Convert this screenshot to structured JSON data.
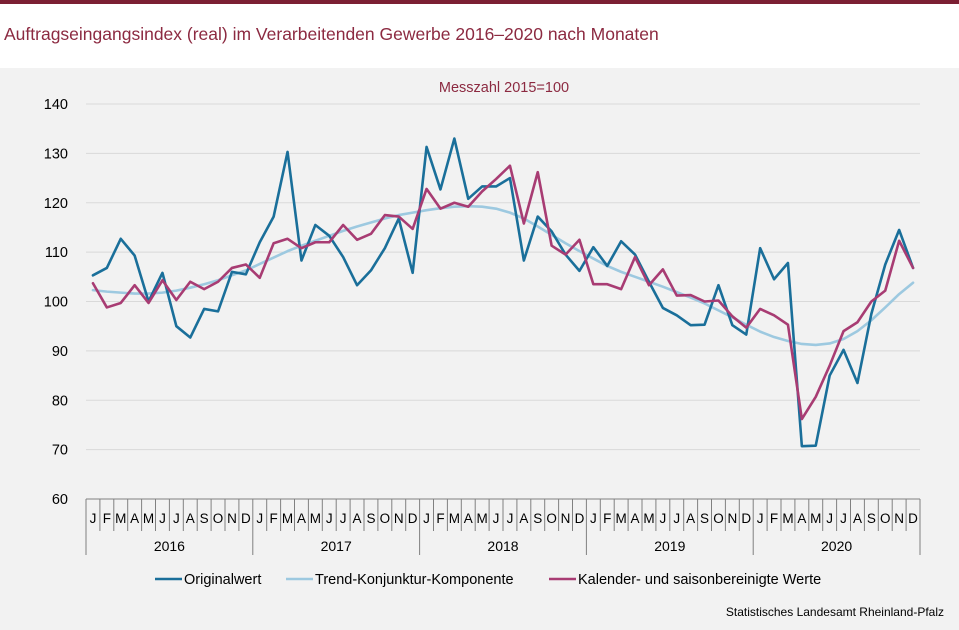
{
  "page": {
    "title": "Auftragseingangsindex (real) im Verarbeitenden Gewerbe 2016–2020 nach Monaten",
    "source": "Statistisches Landesamt Rheinland-Pfalz"
  },
  "colors": {
    "brand": "#7b1f33",
    "title": "#8c2a41",
    "panel_bg": "#f2f2f2",
    "grid": "#d9d9d9"
  },
  "chart_data": {
    "type": "line",
    "title": "Messzahl 2015=100",
    "xlabel": "",
    "ylabel": "",
    "ylim": [
      60,
      140
    ],
    "yticks": [
      60,
      70,
      80,
      90,
      100,
      110,
      120,
      130,
      140
    ],
    "grid": true,
    "legend_position": "bottom",
    "month_labels": [
      "J",
      "F",
      "M",
      "A",
      "M",
      "J",
      "J",
      "A",
      "S",
      "O",
      "N",
      "D"
    ],
    "years": [
      "2016",
      "2017",
      "2018",
      "2019",
      "2020"
    ],
    "series": [
      {
        "name": "Originalwert",
        "color": "#1a6f9a",
        "values": [
          105.3,
          106.8,
          112.7,
          109.3,
          100.0,
          105.8,
          95.0,
          92.7,
          98.5,
          98.0,
          106.0,
          105.5,
          112.0,
          117.2,
          130.3,
          108.3,
          115.5,
          113.3,
          109.0,
          103.3,
          106.3,
          110.8,
          116.8,
          105.8,
          131.3,
          122.7,
          133.0,
          120.8,
          123.3,
          123.3,
          125.0,
          108.3,
          117.2,
          114.2,
          109.5,
          106.2,
          111.0,
          107.2,
          112.2,
          109.5,
          104.0,
          98.7,
          97.2,
          95.2,
          95.3,
          103.3,
          95.2,
          93.3,
          110.8,
          104.5,
          107.8,
          70.7,
          70.8,
          85.0,
          90.2,
          83.5,
          97.5,
          107.5,
          114.5,
          106.8
        ]
      },
      {
        "name": "Trend-Konjunktur-Komponente",
        "color": "#9dc9e0",
        "values": [
          102.3,
          102.0,
          101.8,
          101.6,
          101.6,
          101.8,
          102.2,
          102.8,
          103.5,
          104.3,
          105.3,
          106.3,
          107.6,
          108.9,
          110.2,
          111.3,
          112.3,
          113.3,
          114.3,
          115.2,
          116.0,
          116.8,
          117.5,
          118.0,
          118.5,
          118.9,
          119.2,
          119.3,
          119.2,
          118.8,
          118.0,
          116.8,
          115.2,
          113.5,
          111.8,
          110.2,
          108.7,
          107.2,
          106.0,
          105.0,
          104.0,
          103.0,
          101.9,
          100.8,
          99.6,
          98.2,
          96.8,
          95.3,
          93.9,
          92.8,
          92.0,
          91.4,
          91.2,
          91.5,
          92.4,
          94.0,
          96.2,
          98.8,
          101.5,
          103.8
        ]
      },
      {
        "name": "Kalender- und saisonbereinigte Werte",
        "color": "#a83c73",
        "values": [
          103.7,
          98.8,
          99.7,
          103.3,
          99.7,
          104.3,
          100.3,
          104.0,
          102.5,
          104.0,
          106.8,
          107.5,
          104.8,
          111.8,
          112.7,
          110.8,
          112.0,
          112.0,
          115.5,
          112.5,
          113.7,
          117.5,
          117.2,
          114.7,
          122.8,
          118.8,
          120.0,
          119.2,
          122.3,
          124.8,
          127.5,
          115.8,
          126.2,
          111.3,
          109.5,
          112.5,
          103.5,
          103.5,
          102.5,
          109.0,
          103.3,
          106.5,
          101.2,
          101.3,
          100.0,
          100.2,
          97.0,
          94.7,
          98.5,
          97.2,
          95.3,
          76.2,
          80.7,
          87.0,
          94.0,
          95.8,
          100.0,
          102.2,
          112.3,
          106.8
        ]
      }
    ]
  }
}
